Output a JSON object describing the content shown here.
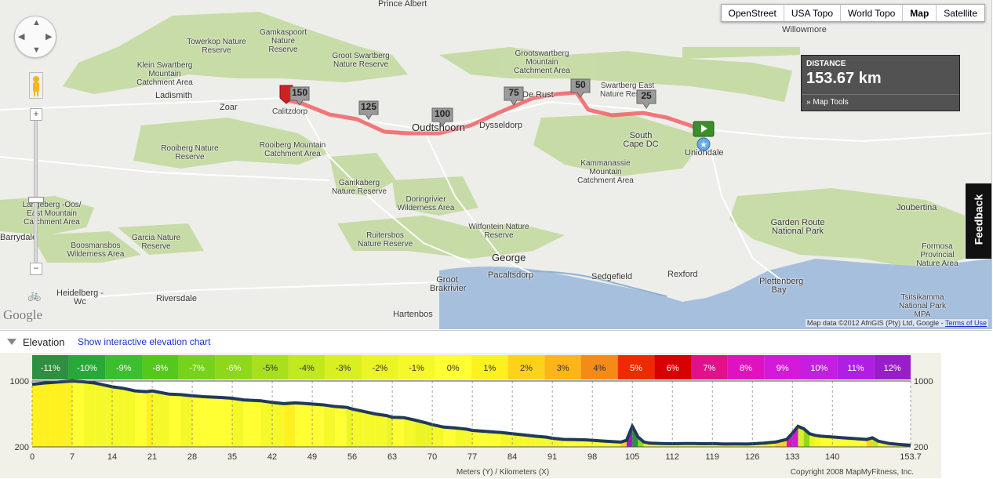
{
  "map_types": [
    "OpenStreet",
    "USA Topo",
    "World Topo",
    "Map",
    "Satellite"
  ],
  "active_map_type": "Map",
  "distance": {
    "label": "DISTANCE",
    "value": "153.67 km",
    "tools_label": "Map Tools"
  },
  "feedback_label": "Feedback",
  "zoom": {
    "plus": "+",
    "minus": "−"
  },
  "google_logo": "Google",
  "attribution": {
    "text": "Map data ©2012 AfriGIS (Pty) Ltd, Google - ",
    "terms": "Terms of Use"
  },
  "places": [
    {
      "name": "Prince Albert"
    },
    {
      "name": "Willowmore"
    },
    {
      "name": "Gamkaspoort Nature Reserve"
    },
    {
      "name": "Towerkop Nature Reserve"
    },
    {
      "name": "Groot Swartberg Nature Reserve"
    },
    {
      "name": "Grootswartberg Mountain Catchment Area"
    },
    {
      "name": "Klein Swartberg Mountain Catchment Area"
    },
    {
      "name": "Swartberg East Nature Reserve"
    },
    {
      "name": "Ladismith"
    },
    {
      "name": "Zoar"
    },
    {
      "name": "Calitzdorp"
    },
    {
      "name": "Oudtshoorn"
    },
    {
      "name": "Dysseldorp"
    },
    {
      "name": "De Rust"
    },
    {
      "name": "Uniondale"
    },
    {
      "name": "South Cape DC"
    },
    {
      "name": "Rooiberg Nature Reserve"
    },
    {
      "name": "Rooiberg Mountain Catchment Area"
    },
    {
      "name": "Kammanassie Mountain Catchment Area"
    },
    {
      "name": "Gamkaberg Nature Reserve"
    },
    {
      "name": "Doringrivier Wilderness Area"
    },
    {
      "name": "Langeberg -Oos/ East Mountain Catchment Area"
    },
    {
      "name": "Barrydale"
    },
    {
      "name": "Boosmansbos Wilderness Area"
    },
    {
      "name": "Garcia Nature Reserve"
    },
    {
      "name": "Ruitersbos Nature Reserve"
    },
    {
      "name": "Witfontein Nature Reserve"
    },
    {
      "name": "George"
    },
    {
      "name": "Pacaltsdorp"
    },
    {
      "name": "Sedgefield"
    },
    {
      "name": "Rexford"
    },
    {
      "name": "Plettenberg Bay"
    },
    {
      "name": "Groot Brakrivier"
    },
    {
      "name": "Hartenbos"
    },
    {
      "name": "Heidelberg - Wc"
    },
    {
      "name": "Riversdale"
    },
    {
      "name": "Joubertina"
    },
    {
      "name": "Garden Route National Park"
    },
    {
      "name": "Formosa Provincial Nature Area"
    },
    {
      "name": "Tsitsikamma National Park MPA"
    }
  ],
  "route_markers": [
    "150",
    "125",
    "100",
    "75",
    "50",
    "25"
  ],
  "elevation": {
    "title": "Elevation",
    "link": "Show interactive elevation chart",
    "grade_labels": [
      "-11%",
      "-10%",
      "-9%",
      "-8%",
      "-7%",
      "-6%",
      "-5%",
      "-4%",
      "-3%",
      "-2%",
      "-1%",
      "0%",
      "1%",
      "2%",
      "3%",
      "4%",
      "5%",
      "6%",
      "7%",
      "8%",
      "9%",
      "10%",
      "11%",
      "12%"
    ],
    "grade_colors": [
      "#2d8f3f",
      "#29a83a",
      "#3cbf2e",
      "#55c81e",
      "#76d21a",
      "#8ed81a",
      "#a9e01e",
      "#c2e81e",
      "#d9ef22",
      "#ebf526",
      "#f5f92a",
      "#ffff33",
      "#fff020",
      "#ffd21a",
      "#ffb418",
      "#f58a16",
      "#ee2a00",
      "#d80000",
      "#e0118a",
      "#e012c0",
      "#d41ad8",
      "#c41ee0",
      "#b01ee6",
      "#9a1ec8"
    ],
    "xlabel": "Meters (Y) / Kilometers (X)",
    "copyright": "Copyright 2008 MapMyFitness, Inc."
  },
  "chart_data": {
    "type": "area",
    "x": [
      0,
      2,
      4,
      6,
      7,
      9,
      11,
      13,
      14,
      16,
      18,
      20,
      21,
      24,
      26,
      28,
      30,
      33,
      35,
      37,
      40,
      42,
      44,
      46,
      49,
      51,
      53,
      55,
      56,
      58,
      60,
      62,
      63,
      65,
      67,
      69,
      70,
      72,
      74,
      76,
      77,
      80,
      82,
      84,
      86,
      88,
      90,
      91,
      93,
      95,
      97,
      98,
      100,
      102,
      103,
      104,
      105,
      106,
      107,
      108,
      110,
      112,
      114,
      116,
      118,
      119,
      121,
      123,
      125,
      126,
      128,
      130,
      132,
      133,
      134,
      135,
      136,
      137,
      138,
      140,
      142,
      144,
      146,
      147,
      148,
      150,
      152,
      153.7
    ],
    "y": [
      960,
      975,
      985,
      995,
      1000,
      990,
      975,
      945,
      930,
      910,
      880,
      870,
      880,
      840,
      835,
      820,
      810,
      800,
      790,
      770,
      760,
      740,
      725,
      735,
      720,
      710,
      690,
      680,
      660,
      630,
      600,
      580,
      560,
      555,
      525,
      490,
      470,
      440,
      430,
      415,
      400,
      385,
      375,
      360,
      345,
      330,
      318,
      305,
      290,
      288,
      285,
      280,
      270,
      262,
      258,
      280,
      450,
      320,
      260,
      245,
      240,
      238,
      240,
      240,
      238,
      240,
      235,
      236,
      234,
      237,
      245,
      258,
      290,
      365,
      450,
      420,
      360,
      340,
      330,
      320,
      310,
      300,
      290,
      310,
      270,
      240,
      228,
      220
    ],
    "xticks": [
      0,
      7,
      14,
      21,
      28,
      35,
      42,
      49,
      56,
      63,
      70,
      77,
      84,
      91,
      98,
      105,
      112,
      119,
      126,
      133,
      140,
      153.7
    ],
    "yticks": [
      200,
      1000
    ],
    "xlim": [
      0,
      153.7
    ],
    "ylim": [
      200,
      1000
    ],
    "xlabel": "Meters (Y) / Kilometers (X)",
    "ylabel": "",
    "grid": true
  }
}
